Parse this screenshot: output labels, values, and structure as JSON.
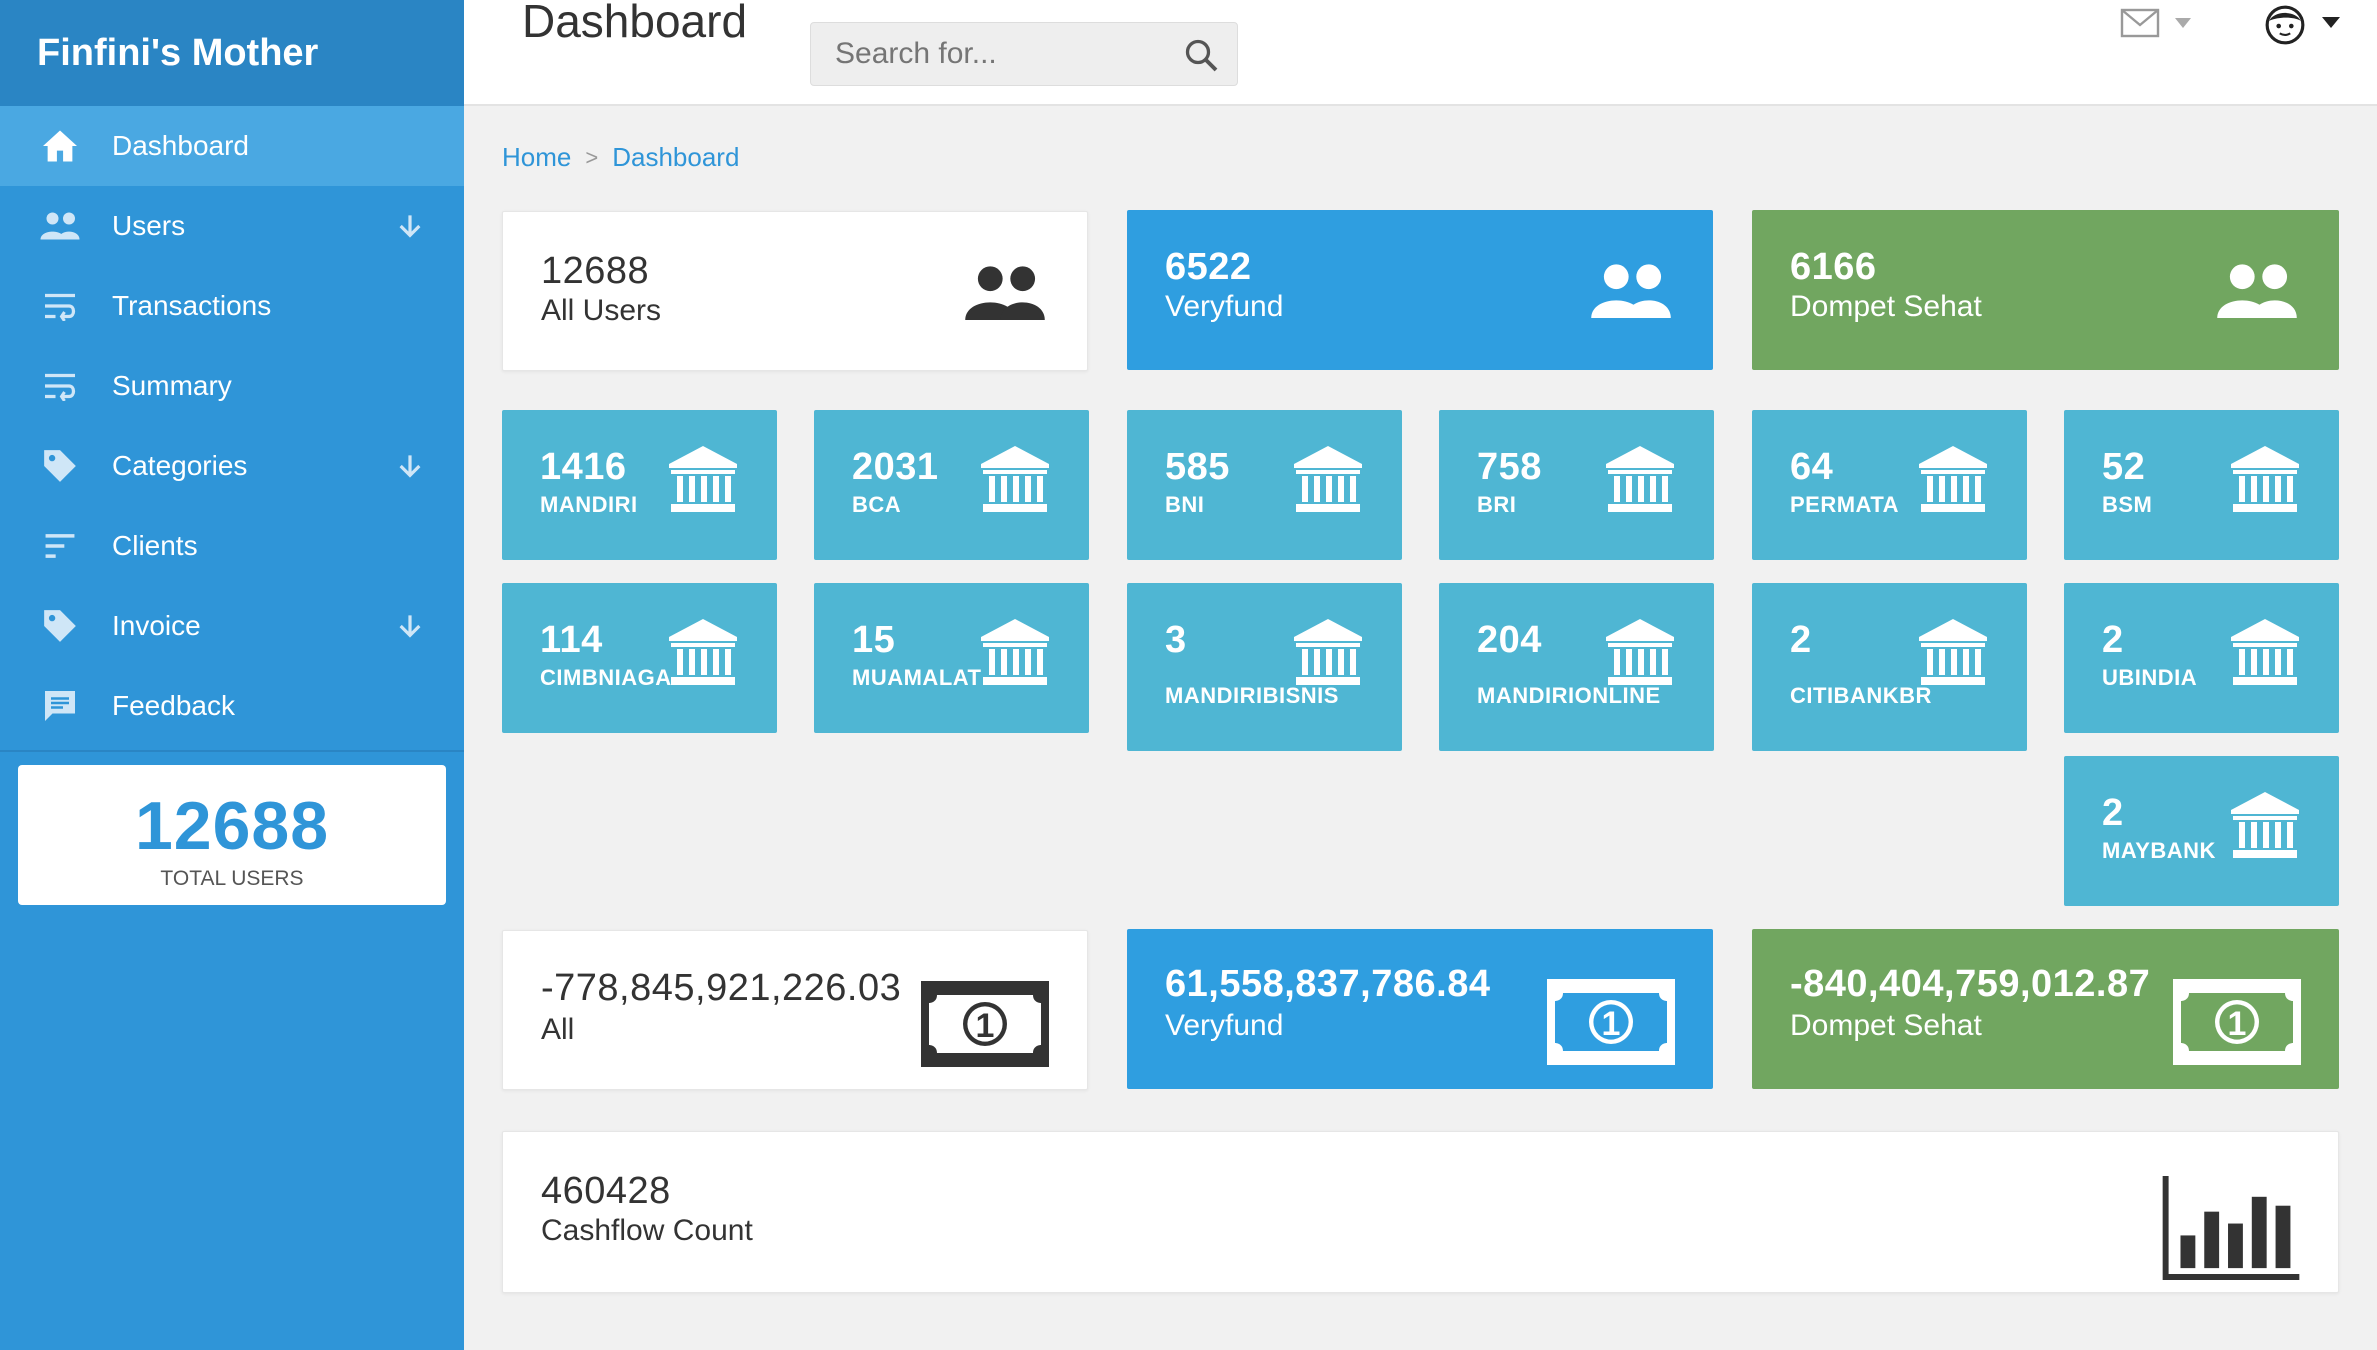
{
  "app": {
    "brand": "Finfini's Mother"
  },
  "colors": {
    "sidebar": "#2f95d8",
    "blue": "#2f9ee0",
    "green": "#71a660",
    "teal": "#4fb6d3"
  },
  "sidebar": {
    "items": [
      {
        "label": "Dashboard",
        "icon": "home-icon",
        "active": true,
        "expandable": false
      },
      {
        "label": "Users",
        "icon": "users-icon",
        "expandable": true
      },
      {
        "label": "Transactions",
        "icon": "wrap-text-icon",
        "expandable": false
      },
      {
        "label": "Summary",
        "icon": "wrap-text-icon",
        "expandable": false
      },
      {
        "label": "Categories",
        "icon": "tag-icon",
        "expandable": true
      },
      {
        "label": "Clients",
        "icon": "sort-icon",
        "expandable": false
      },
      {
        "label": "Invoice",
        "icon": "tag-icon",
        "expandable": true
      },
      {
        "label": "Feedback",
        "icon": "feedback-icon",
        "expandable": false
      }
    ],
    "total_card": {
      "value": "12688",
      "label": "TOTAL USERS"
    }
  },
  "topbar": {
    "title": "Dashboard",
    "search_placeholder": "Search for..."
  },
  "breadcrumb": {
    "home": "Home",
    "separator": ">",
    "current": "Dashboard"
  },
  "user_cards": [
    {
      "value": "12688",
      "label": "All Users",
      "style": "white"
    },
    {
      "value": "6522",
      "label": "Veryfund",
      "style": "blue"
    },
    {
      "value": "6166",
      "label": "Dompet Sehat",
      "style": "green"
    }
  ],
  "bank_cards": [
    {
      "value": "1416",
      "label": "MANDIRI"
    },
    {
      "value": "2031",
      "label": "BCA"
    },
    {
      "value": "585",
      "label": "BNI"
    },
    {
      "value": "758",
      "label": "BRI"
    },
    {
      "value": "64",
      "label": "PERMATA"
    },
    {
      "value": "52",
      "label": "BSM"
    },
    {
      "value": "114",
      "label": "CIMBNIAGA"
    },
    {
      "value": "15",
      "label": "MUAMALAT"
    },
    {
      "value": "3",
      "label": "MANDIRIBISNIS"
    },
    {
      "value": "204",
      "label": "MANDIRIONLINE"
    },
    {
      "value": "2",
      "label": "CITIBANKBR"
    },
    {
      "value": "2",
      "label": "UBINDIA"
    },
    {
      "value": "2",
      "label": "MAYBANK"
    }
  ],
  "money_cards": [
    {
      "value": "-778,845,921,226.03",
      "label": "All",
      "style": "white"
    },
    {
      "value": "61,558,837,786.84",
      "label": "Veryfund",
      "style": "blue"
    },
    {
      "value": "-840,404,759,012.87",
      "label": "Dompet Sehat",
      "style": "green"
    }
  ],
  "cashflow": {
    "value": "460428",
    "label": "Cashflow Count"
  }
}
